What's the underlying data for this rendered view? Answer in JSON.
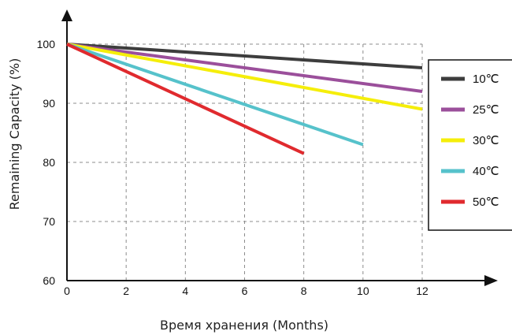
{
  "chart_data": {
    "type": "line",
    "xlabel": "Время хранения (Months)",
    "ylabel": "Remaining Capacity (%)",
    "xlim": [
      0,
      12
    ],
    "ylim": [
      60,
      100
    ],
    "x_ticks": [
      "0",
      "2",
      "4",
      "6",
      "8",
      "10",
      "12"
    ],
    "y_ticks": [
      "60",
      "70",
      "80",
      "90",
      "100"
    ],
    "grid": true,
    "legend_position": "right",
    "series": [
      {
        "name": "10℃",
        "color": "#3d3d3d",
        "x": [
          0,
          12
        ],
        "y": [
          100,
          96
        ]
      },
      {
        "name": "25℃",
        "color": "#9b4f9b",
        "x": [
          0,
          12
        ],
        "y": [
          100,
          92
        ]
      },
      {
        "name": "30℃",
        "color": "#f5ee0a",
        "x": [
          0,
          12
        ],
        "y": [
          100,
          89
        ]
      },
      {
        "name": "40℃",
        "color": "#56c2cb",
        "x": [
          0,
          10
        ],
        "y": [
          100,
          83
        ]
      },
      {
        "name": "50℃",
        "color": "#e02a2e",
        "x": [
          0,
          8
        ],
        "y": [
          100,
          81.5
        ]
      }
    ]
  }
}
